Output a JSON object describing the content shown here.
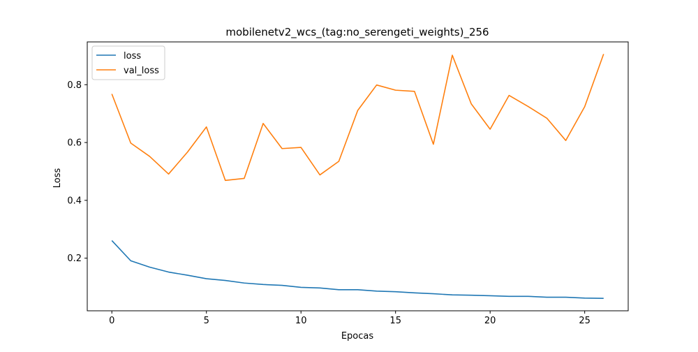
{
  "chart_data": {
    "type": "line",
    "title": "mobilenetv2_wcs_(tag:no_serengeti_weights)_256",
    "xlabel": "Epocas",
    "ylabel": "Loss",
    "xlim": [
      -1.3,
      27.3
    ],
    "ylim": [
      0.018,
      0.948
    ],
    "xticks": [
      0,
      5,
      10,
      15,
      20,
      25
    ],
    "yticks": [
      0.2,
      0.4,
      0.6,
      0.8
    ],
    "xtick_labels": [
      "0",
      "5",
      "10",
      "15",
      "20",
      "25"
    ],
    "ytick_labels": [
      "0.2",
      "0.4",
      "0.6",
      "0.8"
    ],
    "legend_position": "top-left",
    "grid": false,
    "x": [
      0,
      1,
      2,
      3,
      4,
      5,
      6,
      7,
      8,
      9,
      10,
      11,
      12,
      13,
      14,
      15,
      16,
      17,
      18,
      19,
      20,
      21,
      22,
      23,
      24,
      25,
      26
    ],
    "series": [
      {
        "name": "loss",
        "color": "#1f77b4",
        "values": [
          0.261,
          0.191,
          0.169,
          0.152,
          0.141,
          0.129,
          0.123,
          0.114,
          0.109,
          0.106,
          0.099,
          0.097,
          0.091,
          0.091,
          0.086,
          0.084,
          0.08,
          0.077,
          0.073,
          0.072,
          0.07,
          0.068,
          0.068,
          0.065,
          0.065,
          0.062,
          0.061
        ]
      },
      {
        "name": "val_loss",
        "color": "#ff7f0e",
        "values": [
          0.768,
          0.598,
          0.552,
          0.491,
          0.567,
          0.654,
          0.469,
          0.476,
          0.666,
          0.579,
          0.583,
          0.488,
          0.535,
          0.711,
          0.799,
          0.781,
          0.777,
          0.594,
          0.902,
          0.734,
          0.646,
          0.763,
          0.725,
          0.684,
          0.607,
          0.724,
          0.906
        ]
      }
    ]
  }
}
